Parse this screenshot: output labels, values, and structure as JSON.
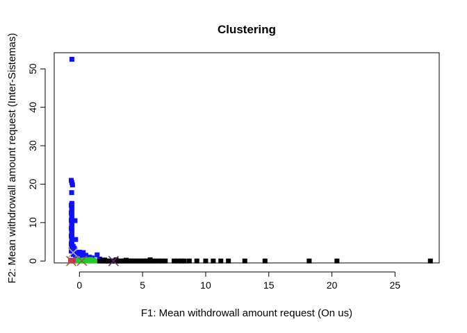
{
  "chart_data": {
    "type": "scatter",
    "title": "Clustering",
    "xlabel": "F1: Mean withdrowall amount request (On us)",
    "ylabel": "F2: Mean withdrowall amount request (Inter-Sistemas)",
    "xlim": [
      -2,
      28.5
    ],
    "ylim": [
      -0.5,
      54.2
    ],
    "x_ticks": [
      0,
      5,
      10,
      15,
      20,
      25
    ],
    "y_ticks": [
      0,
      10,
      20,
      30,
      40,
      50
    ],
    "grid": false,
    "legend": "none",
    "marker": "square",
    "series": [
      {
        "color": "#1010ff",
        "points": [
          [
            -0.6,
            52.5
          ],
          [
            -0.65,
            21.0
          ],
          [
            -0.6,
            20.4
          ],
          [
            -0.55,
            19.8
          ],
          [
            -0.62,
            17.8
          ],
          [
            -0.6,
            15.0
          ],
          [
            -0.65,
            14.5
          ],
          [
            -0.6,
            14.0
          ],
          [
            -0.62,
            13.5
          ],
          [
            -0.6,
            13.0
          ],
          [
            -0.65,
            12.5
          ],
          [
            -0.6,
            12.0
          ],
          [
            -0.62,
            11.5
          ],
          [
            -0.6,
            11.0
          ],
          [
            -0.65,
            10.6
          ],
          [
            -0.35,
            10.5
          ],
          [
            -0.6,
            10.0
          ],
          [
            -0.62,
            9.5
          ],
          [
            -0.6,
            9.0
          ],
          [
            -0.65,
            8.5
          ],
          [
            -0.6,
            8.0
          ],
          [
            -0.62,
            7.5
          ],
          [
            -0.6,
            7.0
          ],
          [
            -0.65,
            6.5
          ],
          [
            -0.6,
            6.0
          ],
          [
            -0.3,
            5.6
          ],
          [
            -0.62,
            5.5
          ],
          [
            -0.6,
            5.0
          ],
          [
            -0.65,
            4.5
          ],
          [
            -0.6,
            4.0
          ],
          [
            -0.5,
            3.8
          ],
          [
            -0.62,
            3.5
          ],
          [
            -0.4,
            3.3
          ],
          [
            -0.6,
            3.0
          ],
          [
            -0.65,
            2.6
          ],
          [
            0.0,
            2.3
          ],
          [
            0.3,
            2.2
          ],
          [
            -0.2,
            2.0
          ],
          [
            0.1,
            1.8
          ],
          [
            -0.5,
            1.7
          ],
          [
            0.5,
            1.5
          ],
          [
            0.4,
            1.2
          ],
          [
            1.4,
            1.6
          ],
          [
            0.8,
            1.0
          ],
          [
            -0.3,
            1.3
          ],
          [
            0.2,
            0.9
          ],
          [
            1.0,
            0.8
          ],
          [
            1.6,
            0.5
          ]
        ]
      },
      {
        "color": "#22cc22",
        "points": [
          [
            -0.2,
            0.0
          ],
          [
            0.0,
            0.1
          ],
          [
            0.2,
            0.0
          ],
          [
            0.4,
            0.1
          ],
          [
            0.6,
            0.0
          ],
          [
            0.8,
            0.1
          ],
          [
            1.0,
            0.0
          ],
          [
            1.2,
            0.05
          ],
          [
            1.4,
            0.0
          ],
          [
            -0.1,
            0.25
          ],
          [
            0.3,
            0.25
          ],
          [
            0.7,
            0.3
          ],
          [
            1.1,
            0.2
          ],
          [
            0.5,
            0.35
          ],
          [
            0.9,
            0.4
          ]
        ]
      },
      {
        "color": "#e0206a",
        "points": [
          [
            -0.7,
            0.0
          ],
          [
            -0.6,
            0.1
          ],
          [
            -0.5,
            0.0
          ],
          [
            -0.65,
            0.2
          ]
        ]
      },
      {
        "color": "#000000",
        "points": [
          [
            1.6,
            0.0
          ],
          [
            1.8,
            0.0
          ],
          [
            2.0,
            0.0
          ],
          [
            2.2,
            0.0
          ],
          [
            2.4,
            0.0
          ],
          [
            2.6,
            0.0
          ],
          [
            2.8,
            0.0
          ],
          [
            3.0,
            0.0
          ],
          [
            3.2,
            0.0
          ],
          [
            3.4,
            0.0
          ],
          [
            3.6,
            0.0
          ],
          [
            3.8,
            0.0
          ],
          [
            4.0,
            0.0
          ],
          [
            4.2,
            0.0
          ],
          [
            4.4,
            0.0
          ],
          [
            4.6,
            0.0
          ],
          [
            4.8,
            0.0
          ],
          [
            5.0,
            0.0
          ],
          [
            5.2,
            0.0
          ],
          [
            5.4,
            0.0
          ],
          [
            5.6,
            0.0
          ],
          [
            5.8,
            0.0
          ],
          [
            6.0,
            0.0
          ],
          [
            6.3,
            0.0
          ],
          [
            6.5,
            0.0
          ],
          [
            6.8,
            0.0
          ],
          [
            7.5,
            0.0
          ],
          [
            7.8,
            0.0
          ],
          [
            8.1,
            0.0
          ],
          [
            8.3,
            0.0
          ],
          [
            8.7,
            0.0
          ],
          [
            9.3,
            0.0
          ],
          [
            10.0,
            0.0
          ],
          [
            10.6,
            0.0
          ],
          [
            11.2,
            0.0
          ],
          [
            11.8,
            0.0
          ],
          [
            13.1,
            0.0
          ],
          [
            14.7,
            0.0
          ],
          [
            18.2,
            0.0
          ],
          [
            20.4,
            0.0
          ],
          [
            27.8,
            0.0
          ],
          [
            2.9,
            0.3
          ],
          [
            5.6,
            0.3
          ],
          [
            2.0,
            0.25
          ],
          [
            3.7,
            0.2
          ],
          [
            1.8,
            0.2
          ]
        ]
      }
    ],
    "centers": [
      {
        "x": -0.5,
        "y": 2.2,
        "color": "#b0b0b0"
      },
      {
        "x": -0.65,
        "y": 0.0,
        "color": "#8a6a20"
      },
      {
        "x": 0.2,
        "y": 0.05,
        "color": "#6e6e40"
      },
      {
        "x": 2.7,
        "y": 0.0,
        "color": "#6a2a6a"
      }
    ]
  }
}
